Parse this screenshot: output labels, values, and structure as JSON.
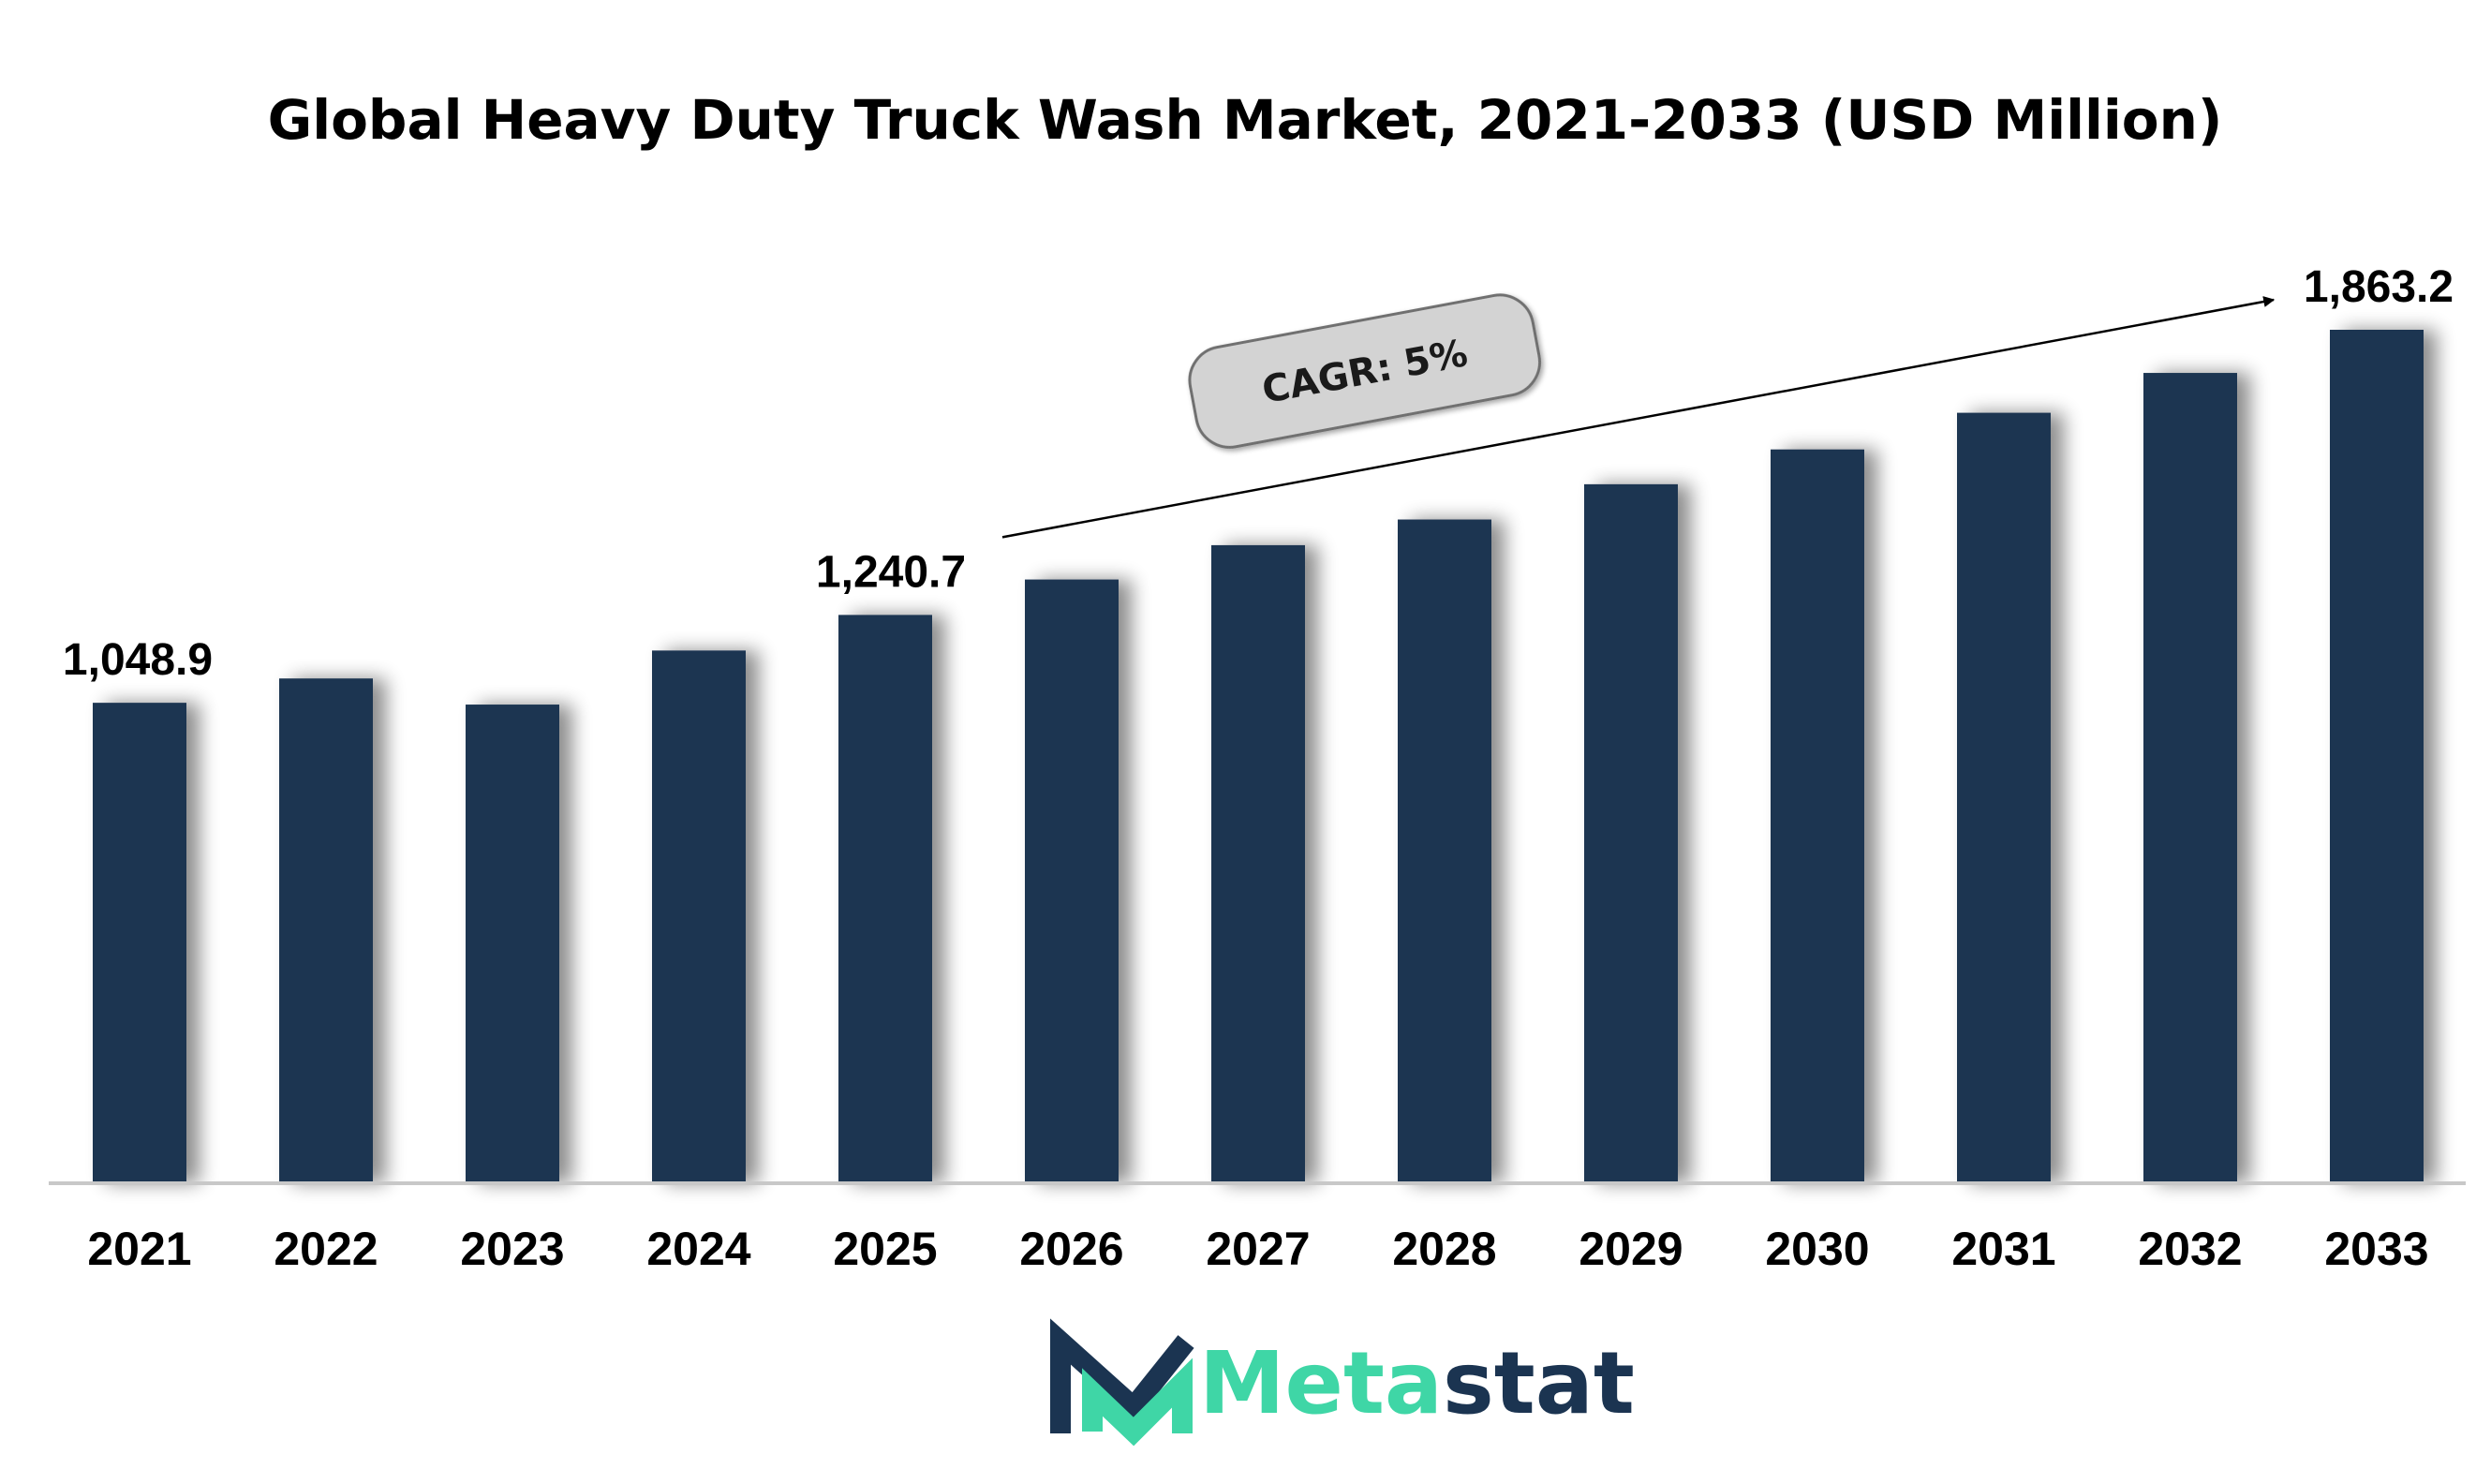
{
  "chart_data": {
    "type": "bar",
    "title": "Global Heavy Duty Truck Wash Market, 2021-2033 (USD Million)",
    "categories": [
      "2021",
      "2022",
      "2023",
      "2024",
      "2025",
      "2026",
      "2027",
      "2028",
      "2029",
      "2030",
      "2031",
      "2032",
      "2033"
    ],
    "values": [
      1048.9,
      1102,
      1045,
      1163,
      1240.7,
      1318,
      1393,
      1449,
      1526,
      1602,
      1682,
      1769,
      1863.2
    ],
    "value_labels": [
      {
        "category": "2021",
        "text": "1,048.9"
      },
      {
        "category": "2025",
        "text": "1,240.7"
      },
      {
        "category": "2033",
        "text": "1,863.2"
      }
    ],
    "annotation": {
      "text": "CAGR: 5%",
      "from": "2025",
      "to": "2033"
    },
    "ylim": [
      0,
      1863.2
    ],
    "grid": false,
    "bar_color": "#1b3451",
    "axis_color": "#c8c8c8"
  },
  "branding": {
    "logo_name_part1": "Meta",
    "logo_name_part2": "stat",
    "accent_color": "#3fd6a6",
    "dark_color": "#1b3451"
  }
}
